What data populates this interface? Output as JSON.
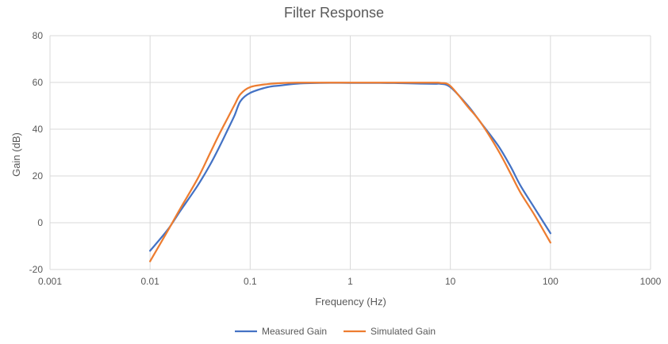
{
  "chart_data": {
    "type": "line",
    "title": "Filter Response",
    "xlabel": "Frequency (Hz)",
    "ylabel": "Gain (dB)",
    "xscale": "log",
    "xlim": [
      0.001,
      1000
    ],
    "ylim": [
      -20,
      80
    ],
    "x_ticks": [
      "0.001",
      "0.01",
      "0.1",
      "1",
      "10",
      "100",
      "1000"
    ],
    "y_ticks": [
      "-20",
      "0",
      "20",
      "40",
      "60",
      "80"
    ],
    "grid": true,
    "legend_position": "bottom",
    "series": [
      {
        "name": "Measured Gain",
        "color": "#4472C4",
        "x": [
          0.01,
          0.015,
          0.02,
          0.03,
          0.04,
          0.05,
          0.06,
          0.07,
          0.08,
          0.1,
          0.15,
          0.2,
          0.3,
          0.5,
          1,
          2,
          3,
          5,
          7,
          8,
          10,
          15,
          20,
          30,
          40,
          50,
          70,
          100
        ],
        "values": [
          -12,
          -3,
          5,
          16,
          25,
          33,
          40,
          46,
          52,
          55.5,
          58,
          58.7,
          59.5,
          59.8,
          59.8,
          59.8,
          59.7,
          59.5,
          59.4,
          59.4,
          58,
          50,
          43,
          33,
          24,
          16,
          6,
          -4.5
        ]
      },
      {
        "name": "Simulated Gain",
        "color": "#ED7D31",
        "x": [
          0.01,
          0.015,
          0.02,
          0.03,
          0.04,
          0.05,
          0.06,
          0.07,
          0.08,
          0.1,
          0.15,
          0.2,
          0.3,
          0.5,
          1,
          2,
          3,
          5,
          7,
          8,
          10,
          15,
          20,
          30,
          40,
          50,
          70,
          100
        ],
        "values": [
          -16.5,
          -3.5,
          6,
          19,
          30,
          38.5,
          45,
          50.5,
          55,
          58,
          59.3,
          59.7,
          59.9,
          59.9,
          59.9,
          59.9,
          59.9,
          59.9,
          59.9,
          59.8,
          58.5,
          49.5,
          43,
          31,
          21,
          13,
          3,
          -8.5
        ]
      }
    ]
  }
}
